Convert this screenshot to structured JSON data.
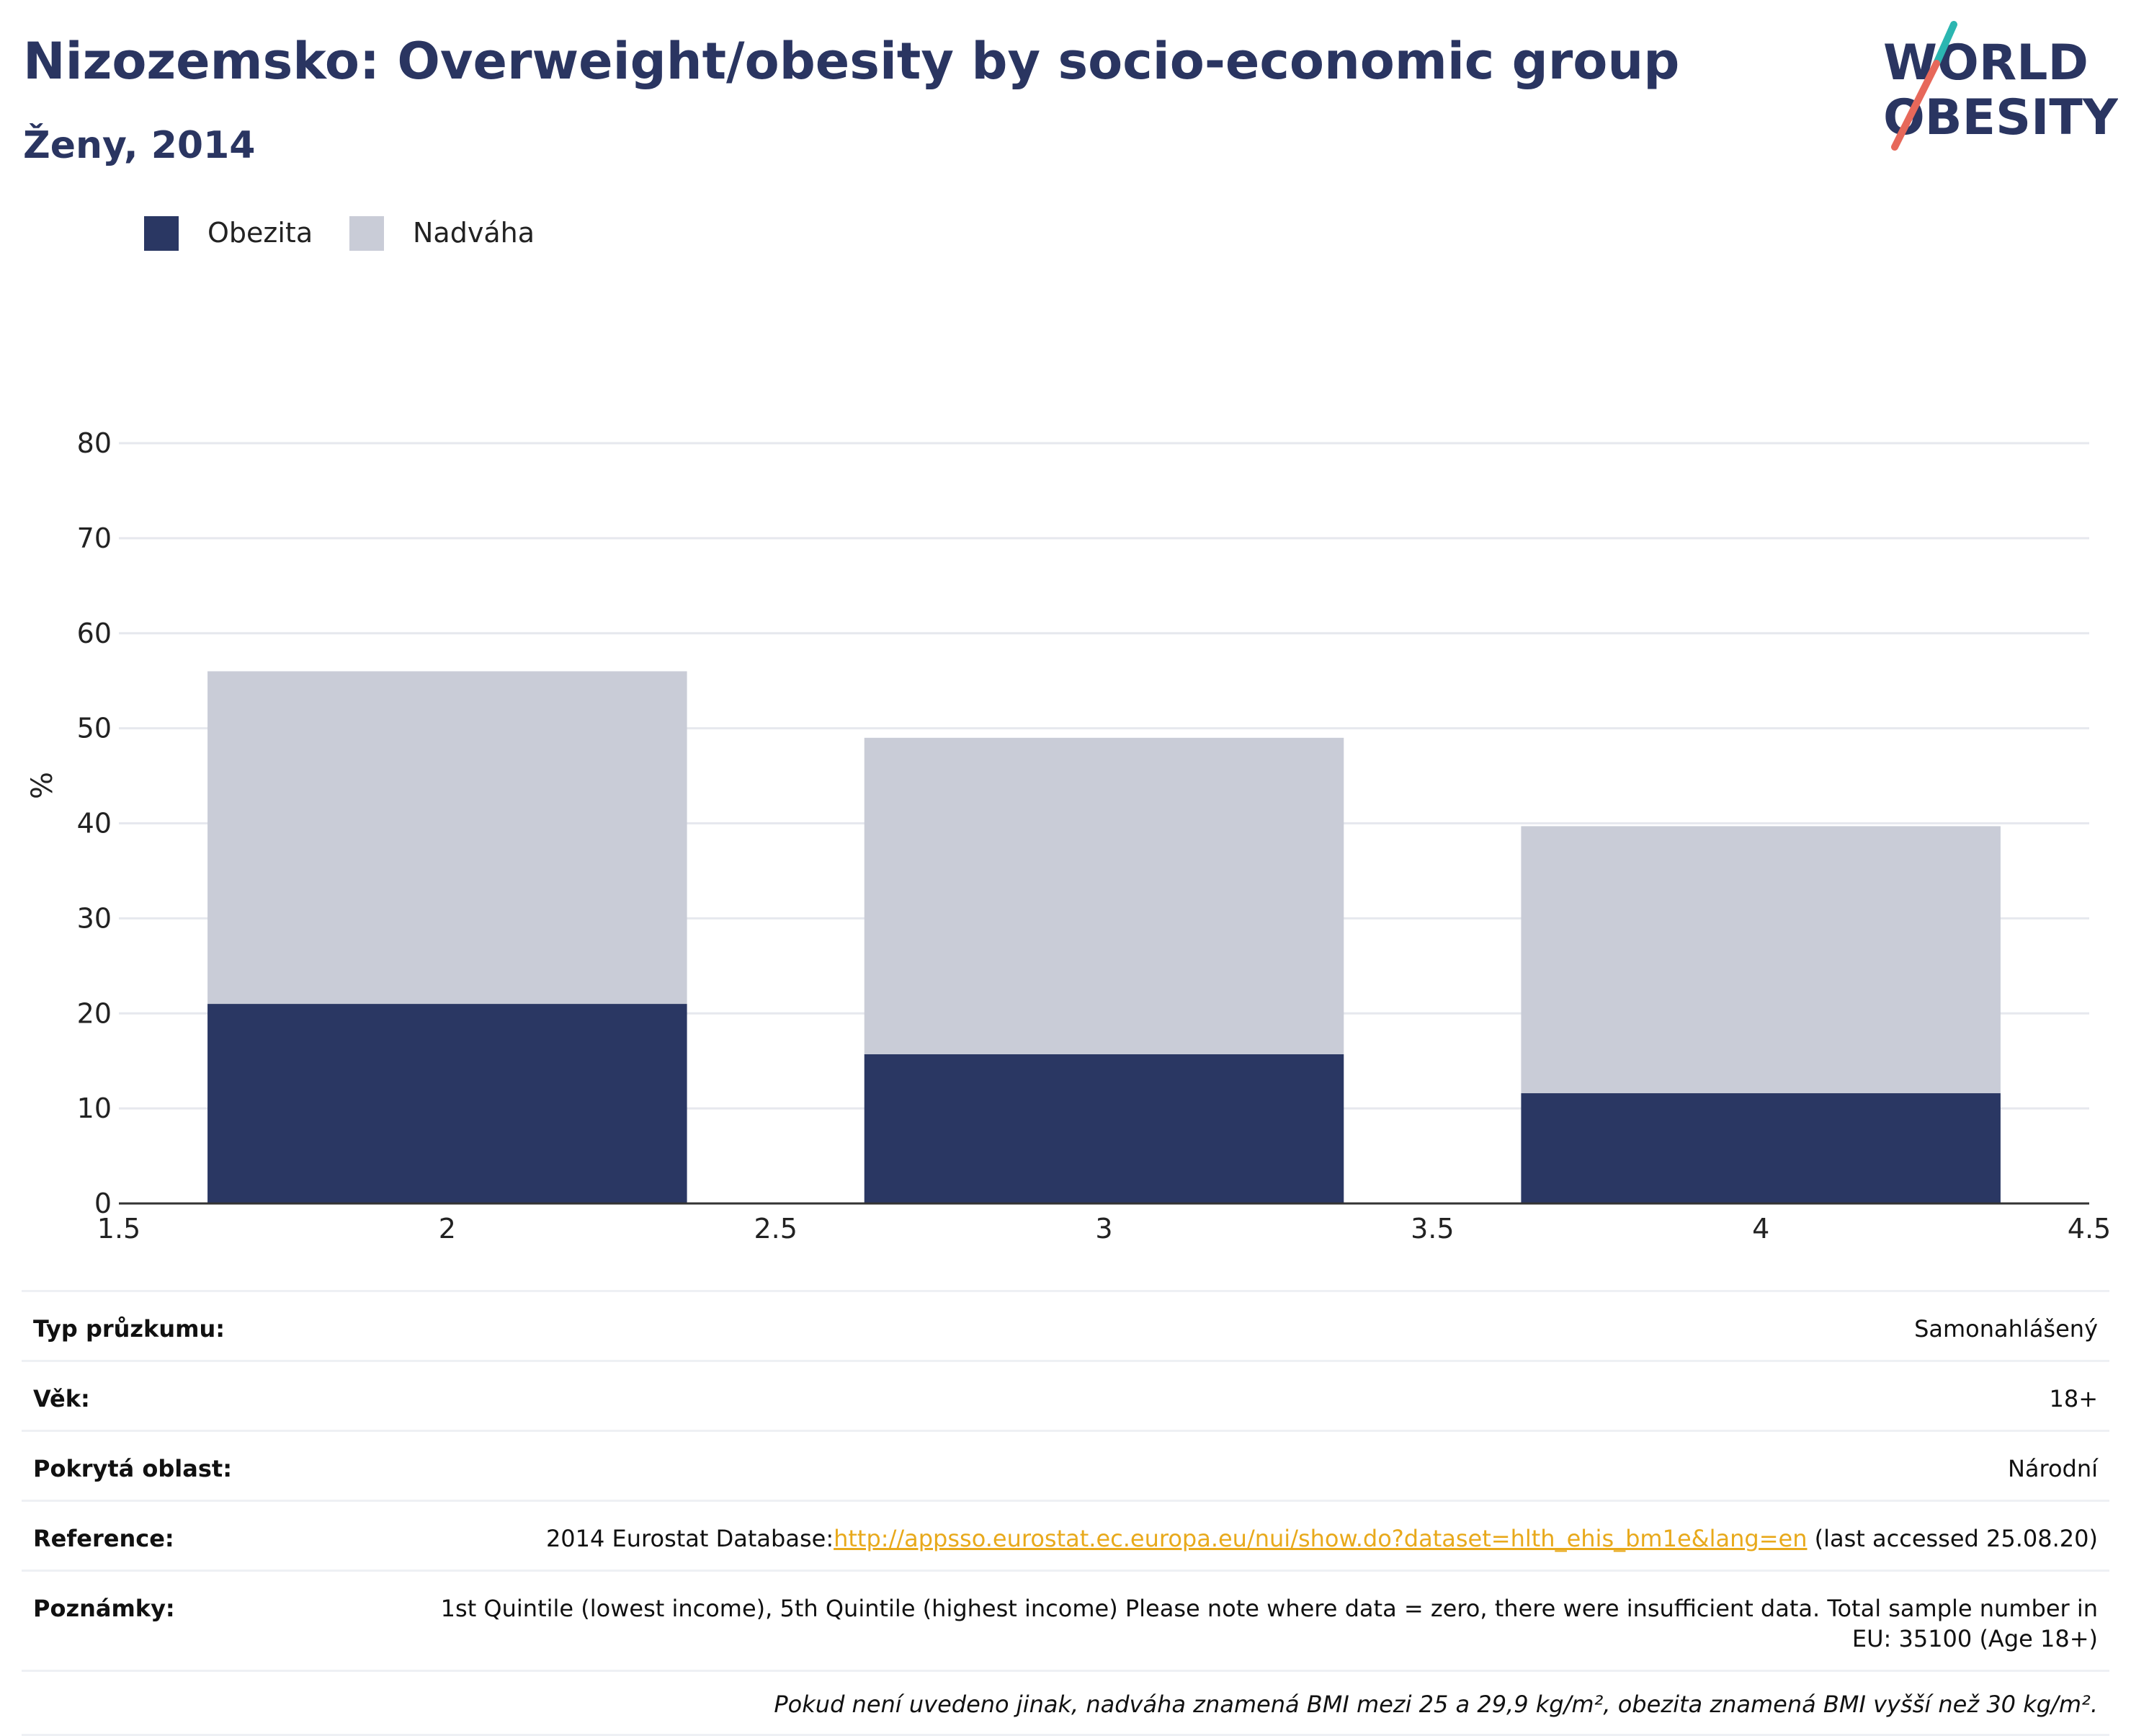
{
  "header": {
    "title": "Nizozemsko: Overweight/obesity by socio-economic group",
    "subtitle": "Ženy, 2014"
  },
  "logo": {
    "line1": "WORLD",
    "line2": "OBESITY"
  },
  "legend": [
    {
      "label": "Obezita",
      "color": "#2a3763"
    },
    {
      "label": "Nadváha",
      "color": "#c9ccd7"
    }
  ],
  "chart_data": {
    "type": "bar",
    "stacked": true,
    "x": [
      2,
      3,
      4
    ],
    "series": [
      {
        "name": "Obezita",
        "color": "#2a3763",
        "values": [
          21.0,
          15.7,
          11.6
        ]
      },
      {
        "name": "Nadváha",
        "color": "#c9ccd7",
        "values": [
          35.0,
          33.3,
          28.1
        ]
      }
    ],
    "xlim": [
      1.5,
      4.5
    ],
    "xticks": [
      "1.5",
      "2",
      "2.5",
      "3",
      "3.5",
      "4",
      "4.5"
    ],
    "ylim": [
      0,
      80
    ],
    "yticks": [
      "0",
      "10",
      "20",
      "30",
      "40",
      "50",
      "60",
      "70",
      "80"
    ],
    "ylabel": "%",
    "grid": true,
    "legend_position": "top-left"
  },
  "info": {
    "survey_type": {
      "label": "Typ průzkumu:",
      "value": "Samonahlášený"
    },
    "age": {
      "label": "Věk:",
      "value": "18+"
    },
    "area": {
      "label": "Pokrytá oblast:",
      "value": "Národní"
    },
    "reference": {
      "label": "Reference:",
      "prefix": "2014 Eurostat Database:",
      "link": "http://appsso.eurostat.ec.europa.eu/nui/show.do?dataset=hlth_ehis_bm1e&lang=en",
      "suffix": " (last accessed 25.08.20)"
    },
    "notes": {
      "label": "Poznámky:",
      "value": "1st Quintile (lowest income), 5th Quintile (highest income) Please note where data = zero, there were insufficient data. Total sample number in EU: 35100 (Age 18+)"
    },
    "footnote": "Pokud není uvedeno jinak, nadváha znamená BMI mezi 25 a 29,9 kg/m², obezita znamená BMI vyšší než 30 kg/m²."
  }
}
